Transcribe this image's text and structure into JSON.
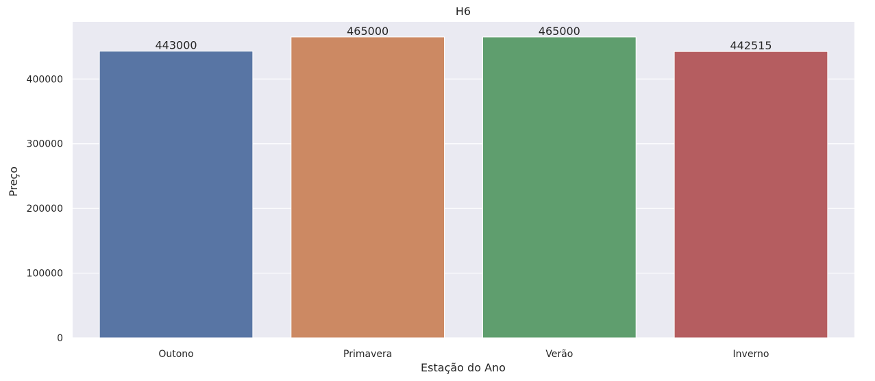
{
  "chart_data": {
    "type": "bar",
    "title": "H6",
    "xlabel": "Estação do Ano",
    "ylabel": "Preço",
    "categories": [
      "Outono",
      "Primavera",
      "Verão",
      "Inverno"
    ],
    "values": [
      443000,
      465000,
      465000,
      442515
    ],
    "data_labels": [
      "443000",
      "465000",
      "465000",
      "442515"
    ],
    "colors": [
      "#5875a4",
      "#cc8963",
      "#5f9e6e",
      "#b55d60"
    ],
    "ylim": [
      0,
      488250
    ],
    "yticks": [
      0,
      100000,
      200000,
      300000,
      400000
    ],
    "ytick_labels": [
      "0",
      "100000",
      "200000",
      "300000",
      "400000"
    ],
    "grid": true,
    "background": "#eaeaf2",
    "grid_color": "#ffffff"
  }
}
